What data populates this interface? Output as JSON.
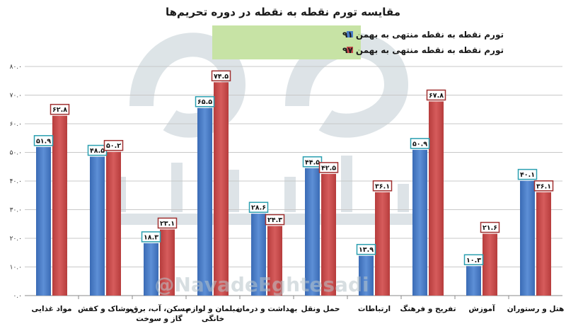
{
  "chart_data": {
    "type": "bar",
    "title": "مقایسه تورم نقطه به نقطه در دوره تحریم‌ها",
    "legend_position": "top",
    "grid": true,
    "ylim": [
      0,
      80
    ],
    "yticks": [
      "۰.۰",
      "۱۰.۰",
      "۲۰.۰",
      "۳۰.۰",
      "۴۰.۰",
      "۵۰.۰",
      "۶۰.۰",
      "۷۰.۰",
      "۸۰.۰"
    ],
    "categories": [
      [
        "مواد غذایی"
      ],
      [
        "پوشاک و کفش"
      ],
      [
        "مسکن، آب، برق،",
        "گاز و سوخت"
      ],
      [
        "مبلمان و لوازم",
        "خانگی"
      ],
      [
        "بهداشت و درمان"
      ],
      [
        "حمل ونقل"
      ],
      [
        "ارتباطات"
      ],
      [
        "تفریح و فرهنگ"
      ],
      [
        "آموزش"
      ],
      [
        "هتل و رستوران"
      ]
    ],
    "series": [
      {
        "name": "تورم نقطه به نقطه منتهی به بهمن ۹۱",
        "color": "#4a7ec8",
        "values": [
          51.9,
          48.5,
          18.3,
          65.5,
          28.6,
          44.5,
          13.9,
          50.9,
          10.3,
          40.1
        ],
        "labels": [
          "۵۱.۹",
          "۴۸.۵",
          "۱۸.۳",
          "۶۵.۵",
          "۲۸.۶",
          "۴۴.۵",
          "۱۳.۹",
          "۵۰.۹",
          "۱۰.۳",
          "۴۰.۱"
        ]
      },
      {
        "name": "تورم نقطه به نقطه منتهی به بهمن ۹۷",
        "color": "#c84a4a",
        "values": [
          62.8,
          50.2,
          23.1,
          74.5,
          24.3,
          42.5,
          36.1,
          67.8,
          21.6,
          36.1
        ],
        "labels": [
          "۶۲.۸",
          "۵۰.۲",
          "۲۳.۱",
          "۷۴.۵",
          "۲۴.۳",
          "۴۲.۵",
          "۳۶.۱",
          "۶۷.۸",
          "۲۱.۶",
          "۳۶.۱"
        ]
      }
    ]
  },
  "watermark": {
    "handle": "@NavadeEghtesadi",
    "brand": "نود اقتصادی"
  }
}
